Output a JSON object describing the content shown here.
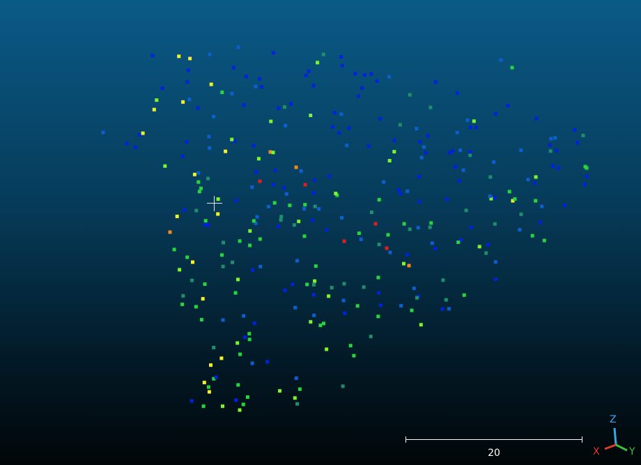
{
  "viewer": {
    "background_top": "#0a5a87",
    "background_bottom": "#010608"
  },
  "point_cloud": {
    "color_scale": [
      "#0022dd",
      "#0b5fcf",
      "#1e8f6a",
      "#27d63c",
      "#7df52a",
      "#f3f22a",
      "#f08a1a",
      "#e02020"
    ]
  },
  "scale_bar": {
    "label": "20",
    "color": "#ffffff"
  },
  "axis_gizmo": {
    "x_label": "X",
    "x_color": "#e43a2a",
    "y_label": "Y",
    "y_color": "#3cc23c",
    "z_label": "Z",
    "z_color": "#3aa8e8"
  },
  "crosshair": {
    "color": "#e6e6e6"
  }
}
